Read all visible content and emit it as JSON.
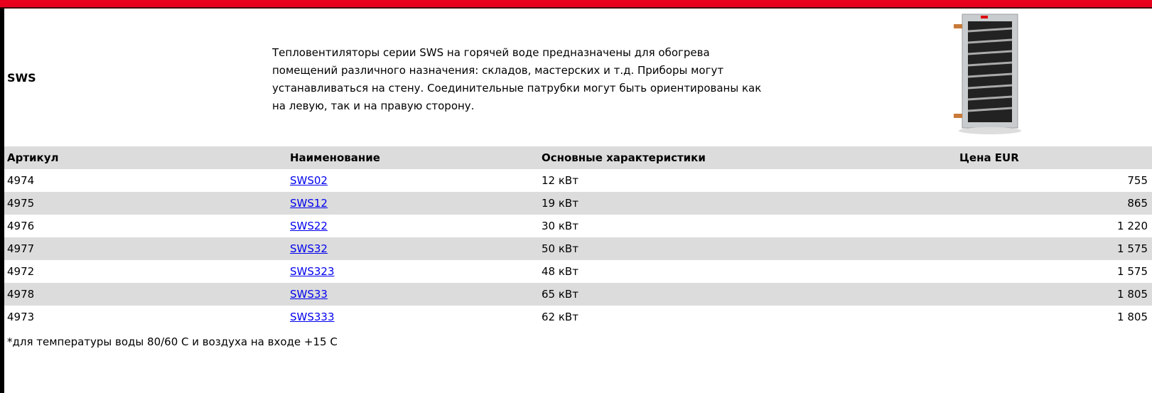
{
  "product": {
    "name": "SWS",
    "description": [
      "Тепловентиляторы серии SWS на горячей воде предназначены для обогрева",
      "помещений различного назначения: складов, мастерских и т.д. Приборы могут",
      "устанавливаться на стену. Соединительные патрубки могут быть ориентированы как",
      "на левую, так и на правую сторону."
    ]
  },
  "table": {
    "columns": [
      "Артикул",
      "Наименование",
      "Основные характеристики",
      "Цена EUR"
    ],
    "rows": [
      [
        "4974",
        "SWS02",
        "12 кВт",
        "755"
      ],
      [
        "4975",
        "SWS12",
        "19 кВт",
        "865"
      ],
      [
        "4976",
        "SWS22",
        "30 кВт",
        "1 220"
      ],
      [
        "4977",
        "SWS32",
        "50 кВт",
        "1 575"
      ],
      [
        "4972",
        "SWS323",
        "48 кВт",
        "1 575"
      ],
      [
        "4978",
        "SWS33",
        "65 кВт",
        "1 805"
      ],
      [
        "4973",
        "SWS333",
        "62 кВт",
        "1 805"
      ]
    ]
  },
  "footnote": "*для температуры воды 80/60 С и воздуха на входе +15 С"
}
